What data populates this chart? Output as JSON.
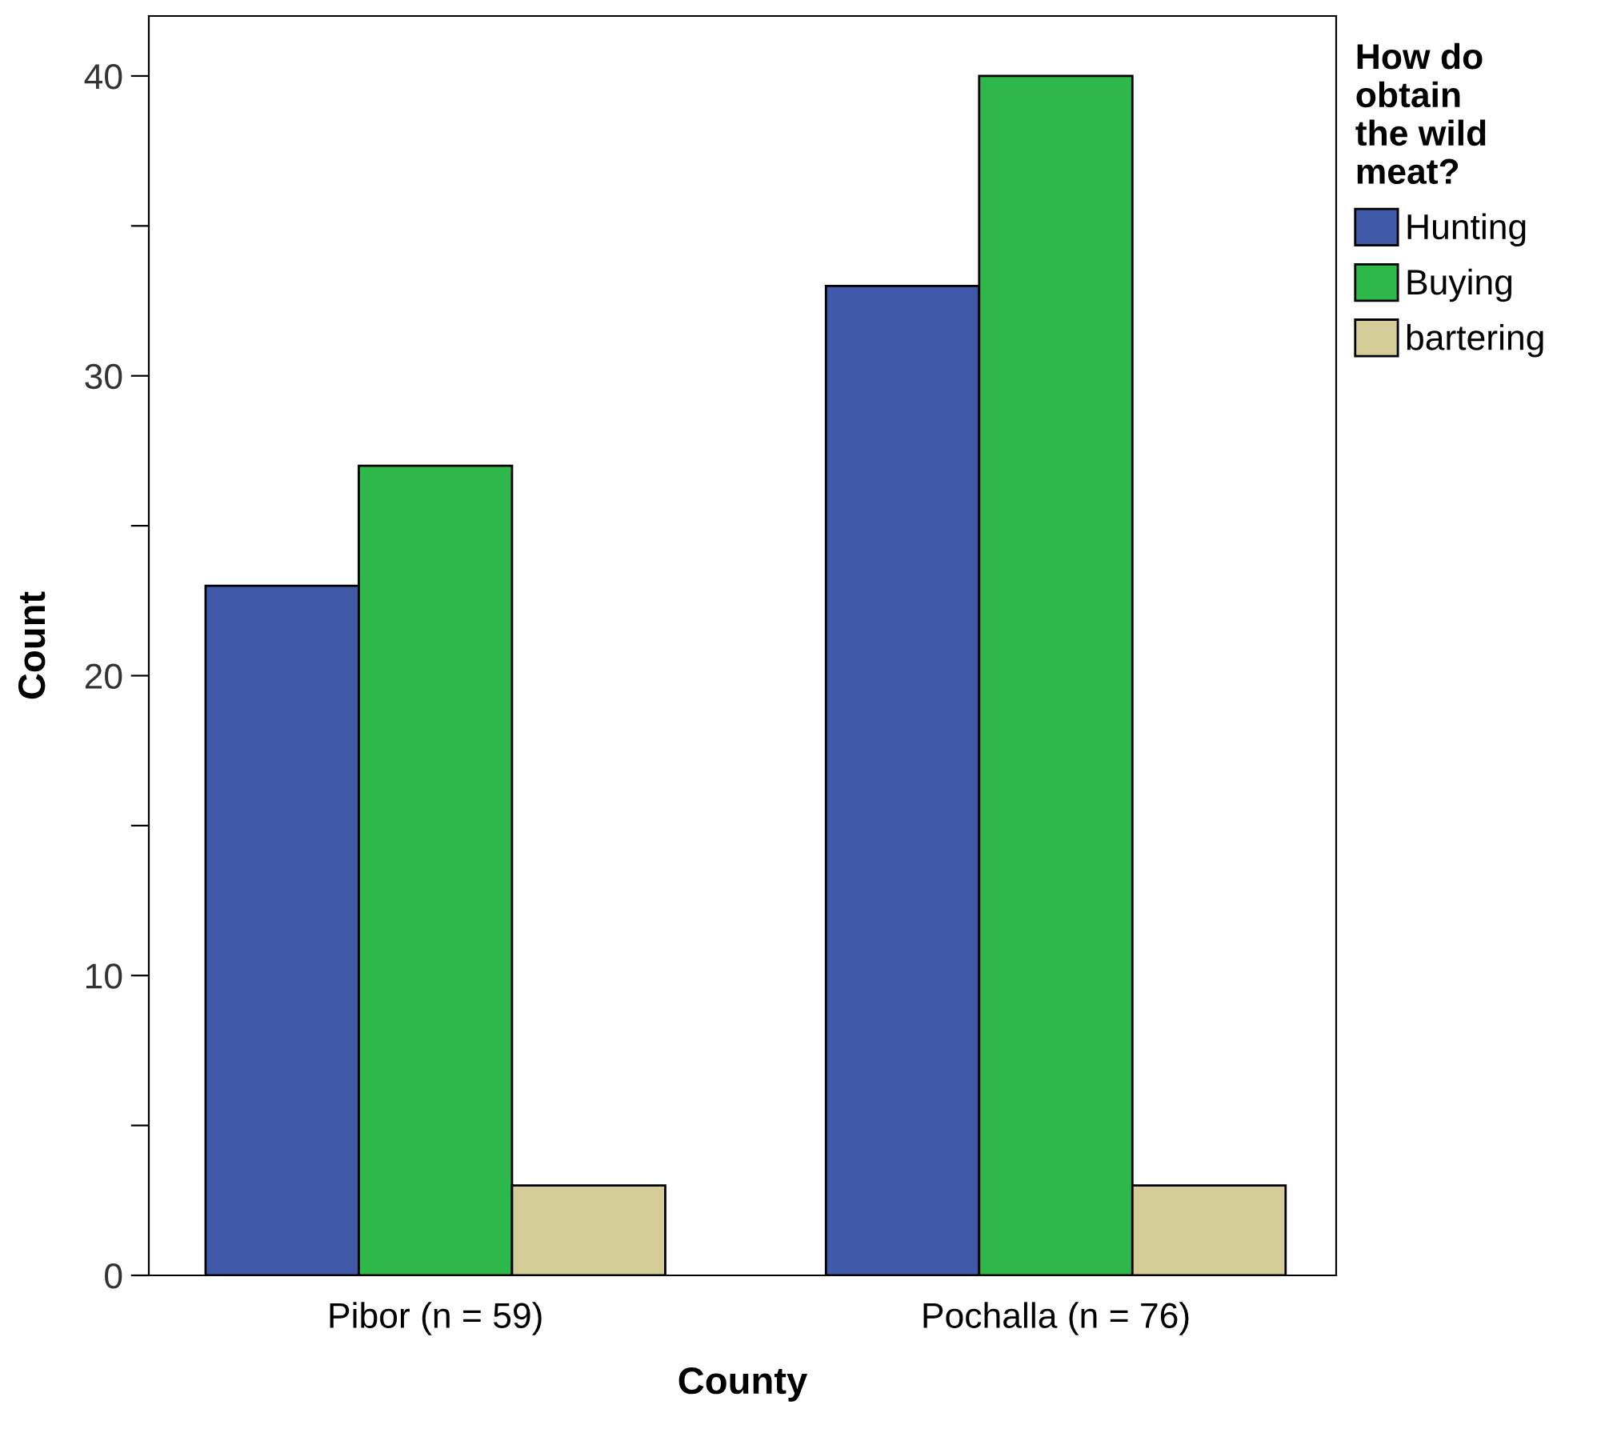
{
  "chart_data": {
    "type": "bar",
    "xlabel": "County",
    "ylabel": "Count",
    "legend_title": "How do\nobtain\nthe wild\nmeat?",
    "categories": [
      "Pibor (n = 59)",
      "Pochalla (n = 76)"
    ],
    "series": [
      {
        "name": "Hunting",
        "color": "#3f59a8",
        "values": [
          23,
          33
        ]
      },
      {
        "name": "Buying",
        "color": "#2fb84a",
        "values": [
          27,
          40
        ]
      },
      {
        "name": "bartering",
        "color": "#d5cd97",
        "values": [
          3,
          3
        ]
      }
    ],
    "ylim": [
      0,
      42
    ],
    "yticks": [
      0,
      {
        "value": 5,
        "label": null
      },
      10,
      {
        "value": 15,
        "label": null
      },
      20,
      {
        "value": 25,
        "label": null
      },
      30,
      {
        "value": 35,
        "label": null
      },
      40
    ],
    "grid": false,
    "legend": "right"
  }
}
